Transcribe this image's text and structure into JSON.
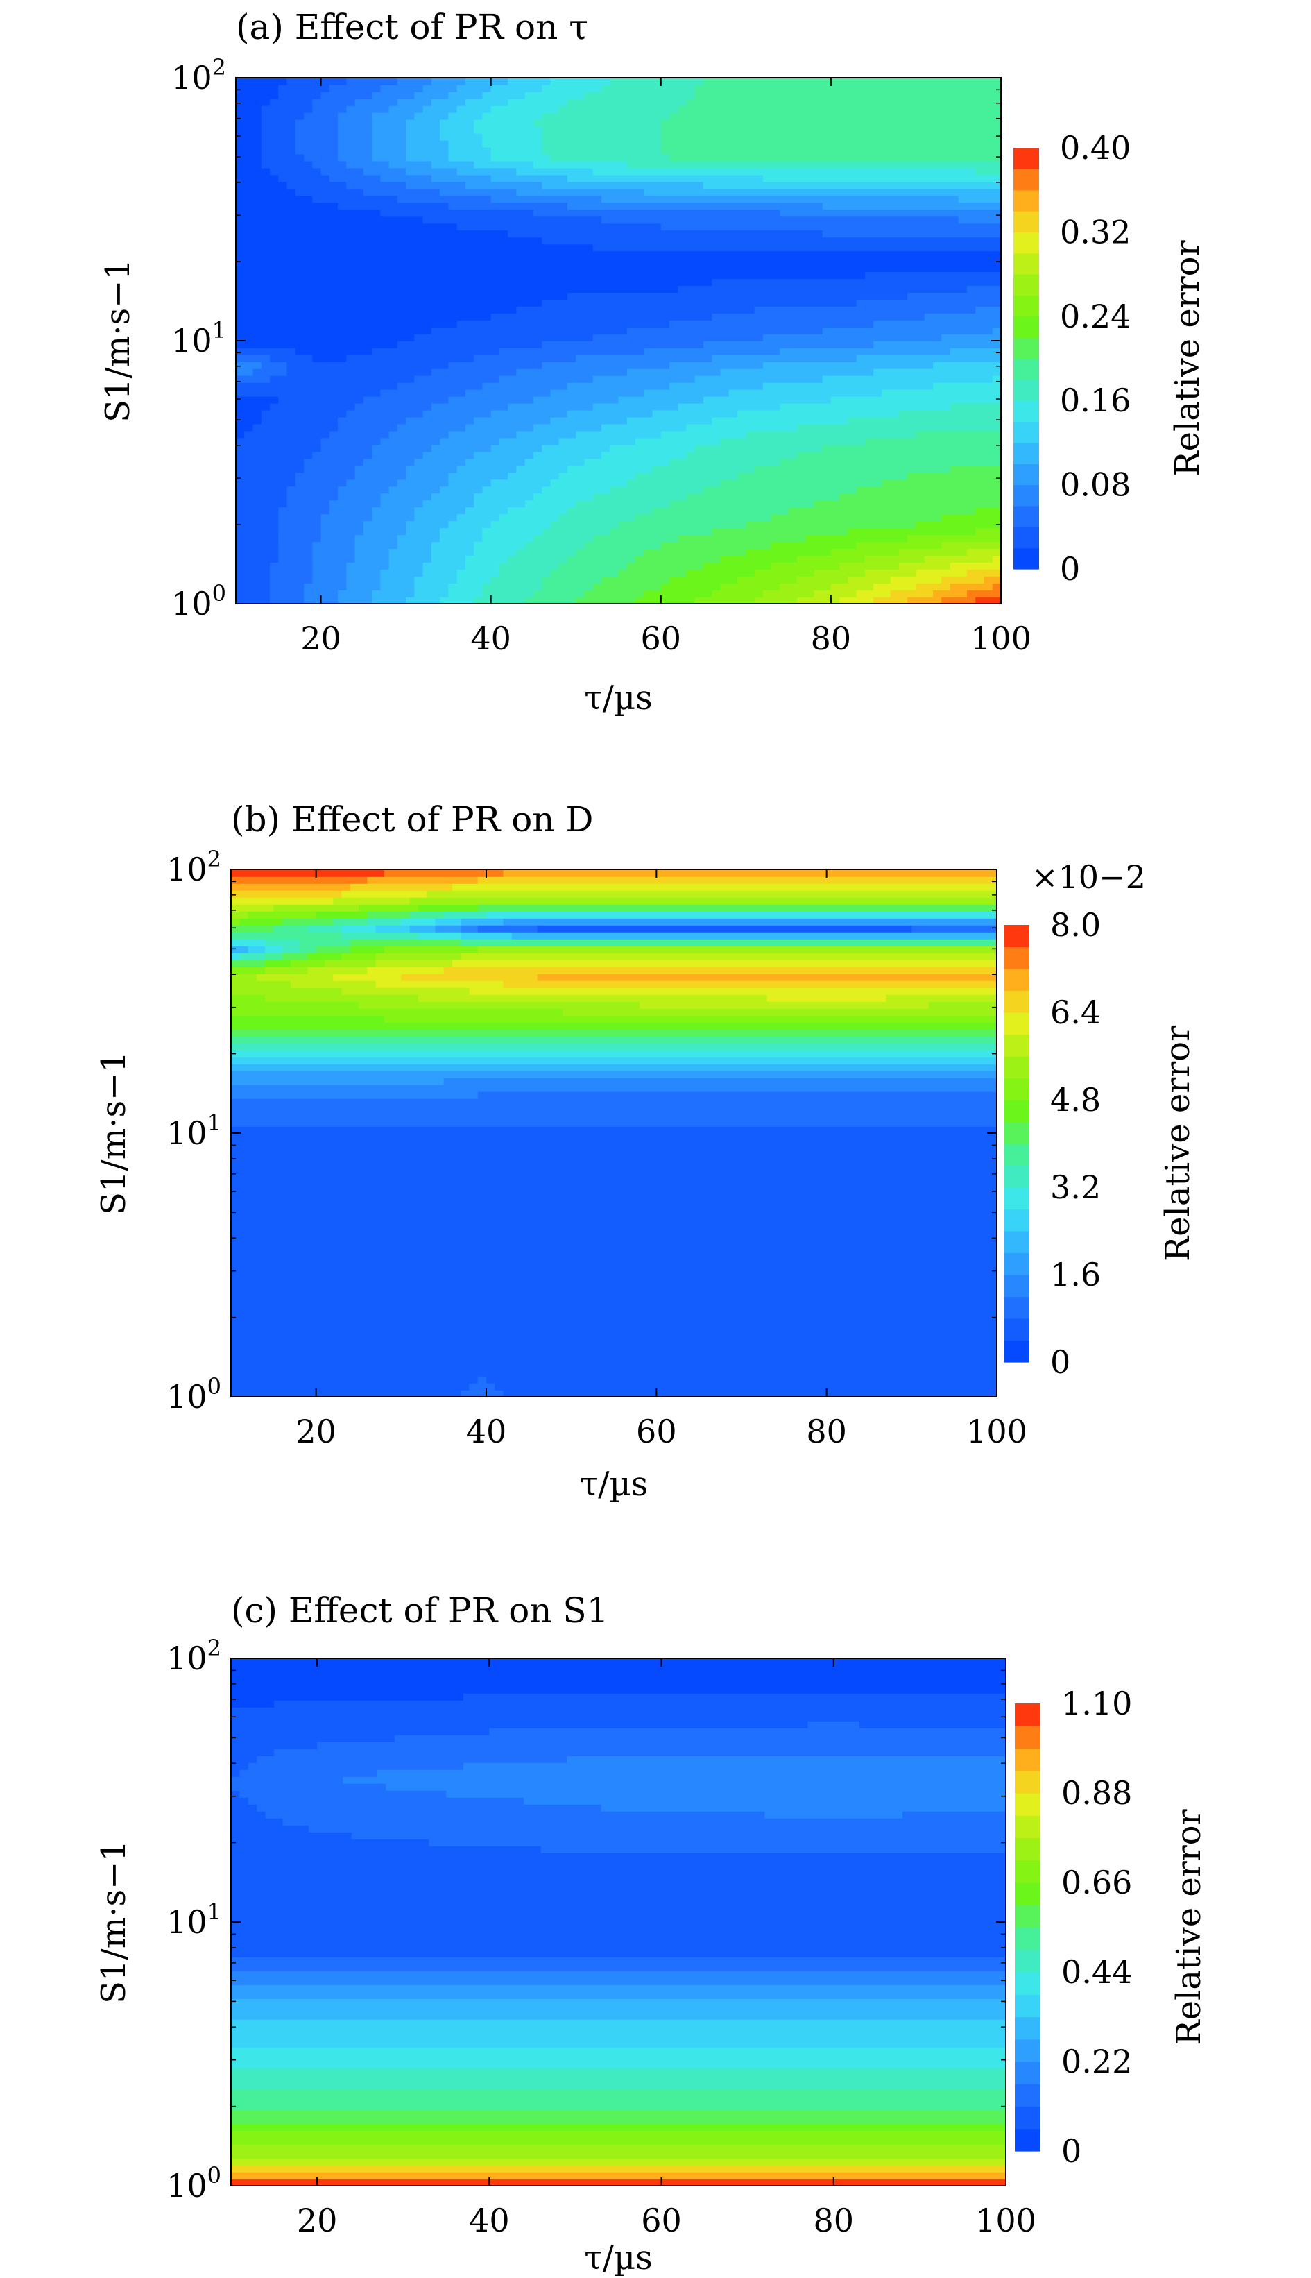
{
  "chart_data": [
    {
      "type": "heatmap",
      "panel": "a",
      "title": "(a) Effect of PR on τ",
      "x_label": "τ/µs",
      "y_label": "S1/m·s−1",
      "x_ticks": [
        "20",
        "40",
        "60",
        "80",
        "100"
      ],
      "y_ticks": [
        "10⁰",
        "10¹",
        "10²"
      ],
      "xlim": [
        10,
        100
      ],
      "ylim": [
        1,
        100
      ],
      "y_scale": "log",
      "colorbar_label": "Relative error",
      "colorbar_ticks": [
        "0",
        "0.08",
        "0.16",
        "0.24",
        "0.32",
        "0.40"
      ],
      "colorbar_range": [
        0,
        0.4
      ],
      "colorbar_multiplier": "",
      "x": [
        10,
        20,
        30,
        40,
        50,
        60,
        70,
        80,
        90,
        100
      ],
      "y": [
        1,
        2,
        4,
        6,
        8,
        10,
        15,
        20,
        30,
        50,
        70,
        100
      ],
      "z": [
        [
          0.02,
          0.07,
          0.12,
          0.17,
          0.2,
          0.23,
          0.26,
          0.3,
          0.35,
          0.4
        ],
        [
          0.02,
          0.06,
          0.1,
          0.14,
          0.17,
          0.19,
          0.2,
          0.21,
          0.22,
          0.23
        ],
        [
          0.02,
          0.04,
          0.07,
          0.1,
          0.13,
          0.15,
          0.17,
          0.18,
          0.19,
          0.19
        ],
        [
          0.01,
          0.03,
          0.05,
          0.07,
          0.09,
          0.11,
          0.13,
          0.14,
          0.15,
          0.16
        ],
        [
          0.08,
          0.02,
          0.03,
          0.05,
          0.07,
          0.08,
          0.1,
          0.11,
          0.12,
          0.13
        ],
        [
          0.0,
          0.01,
          0.02,
          0.03,
          0.04,
          0.05,
          0.06,
          0.07,
          0.08,
          0.09
        ],
        [
          0.0,
          0.0,
          0.01,
          0.01,
          0.02,
          0.02,
          0.03,
          0.03,
          0.04,
          0.05
        ],
        [
          0.0,
          0.0,
          0.0,
          0.0,
          0.01,
          0.01,
          0.01,
          0.01,
          0.01,
          0.01
        ],
        [
          0.0,
          0.01,
          0.02,
          0.03,
          0.04,
          0.05,
          0.05,
          0.06,
          0.06,
          0.07
        ],
        [
          0.01,
          0.05,
          0.1,
          0.14,
          0.17,
          0.18,
          0.19,
          0.19,
          0.19,
          0.19
        ],
        [
          0.01,
          0.05,
          0.1,
          0.15,
          0.17,
          0.18,
          0.19,
          0.19,
          0.19,
          0.19
        ],
        [
          0.0,
          0.03,
          0.06,
          0.11,
          0.15,
          0.17,
          0.19,
          0.19,
          0.19,
          0.19
        ]
      ]
    },
    {
      "type": "heatmap",
      "panel": "b",
      "title": "(b) Effect of PR on D",
      "x_label": "τ/µs",
      "y_label": "S1/m·s−1",
      "x_ticks": [
        "20",
        "40",
        "60",
        "80",
        "100"
      ],
      "y_ticks": [
        "10⁰",
        "10¹",
        "10²"
      ],
      "xlim": [
        10,
        100
      ],
      "ylim": [
        1,
        100
      ],
      "y_scale": "log",
      "colorbar_label": "Relative error",
      "colorbar_ticks": [
        "0",
        "1.6",
        "3.2",
        "4.8",
        "6.4",
        "8.0"
      ],
      "colorbar_range": [
        0,
        8.0
      ],
      "colorbar_multiplier": "×10−2",
      "x": [
        10,
        20,
        30,
        40,
        50,
        60,
        70,
        80,
        90,
        100
      ],
      "y": [
        1,
        2,
        5,
        10,
        15,
        20,
        25,
        30,
        40,
        50,
        60,
        75,
        100
      ],
      "z": [
        [
          0.4,
          0.4,
          0.6,
          0.9,
          0.5,
          0.8,
          0.6,
          0.6,
          0.6,
          0.8
        ],
        [
          0.5,
          0.5,
          0.5,
          0.5,
          0.5,
          0.5,
          0.5,
          0.5,
          0.5,
          0.5
        ],
        [
          0.5,
          0.5,
          0.5,
          0.5,
          0.5,
          0.5,
          0.5,
          0.5,
          0.5,
          0.5
        ],
        [
          0.7,
          0.7,
          0.7,
          0.7,
          0.7,
          0.7,
          0.7,
          0.7,
          0.7,
          0.7
        ],
        [
          1.4,
          1.4,
          1.4,
          1.3,
          1.3,
          1.3,
          1.3,
          1.3,
          1.3,
          1.3
        ],
        [
          2.8,
          2.8,
          2.8,
          2.8,
          2.8,
          2.8,
          2.8,
          2.8,
          2.8,
          2.8
        ],
        [
          4.5,
          4.5,
          4.5,
          4.5,
          4.5,
          4.5,
          4.5,
          4.6,
          4.5,
          4.5
        ],
        [
          5.0,
          5.0,
          5.2,
          5.3,
          5.4,
          5.5,
          5.5,
          5.8,
          5.5,
          5.4
        ],
        [
          5.5,
          6.0,
          6.5,
          6.8,
          7.0,
          7.1,
          7.0,
          7.0,
          7.0,
          7.0
        ],
        [
          2.0,
          4.0,
          5.0,
          5.2,
          5.2,
          5.2,
          5.2,
          5.2,
          5.2,
          5.2
        ],
        [
          4.5,
          3.5,
          2.5,
          1.0,
          0.5,
          0.5,
          0.5,
          0.6,
          0.7,
          0.8
        ],
        [
          6.0,
          6.0,
          5.5,
          5.2,
          5.2,
          5.2,
          5.2,
          5.2,
          5.2,
          5.2
        ],
        [
          8.0,
          8.0,
          7.8,
          7.5,
          7.2,
          7.0,
          7.0,
          7.0,
          7.0,
          7.0
        ]
      ]
    },
    {
      "type": "heatmap",
      "panel": "c",
      "title": "(c) Effect of PR on S1",
      "x_label": "τ/µs",
      "y_label": "S1/m·s−1",
      "x_ticks": [
        "20",
        "40",
        "60",
        "80",
        "100"
      ],
      "y_ticks": [
        "10⁰",
        "10¹",
        "10²"
      ],
      "xlim": [
        10,
        100
      ],
      "ylim": [
        1,
        100
      ],
      "y_scale": "log",
      "colorbar_label": "Relative error",
      "colorbar_ticks": [
        "0",
        "0.22",
        "0.44",
        "0.66",
        "0.88",
        "1.10"
      ],
      "colorbar_range": [
        0,
        1.1
      ],
      "colorbar_multiplier": "",
      "x": [
        10,
        20,
        30,
        40,
        50,
        60,
        70,
        80,
        90,
        100
      ],
      "y": [
        1,
        1.3,
        2,
        3,
        5,
        7,
        10,
        15,
        25,
        35,
        50,
        70,
        100
      ],
      "z": [
        [
          1.1,
          1.1,
          1.1,
          1.1,
          1.1,
          1.1,
          1.1,
          1.1,
          1.1,
          1.1
        ],
        [
          0.75,
          0.75,
          0.75,
          0.75,
          0.75,
          0.75,
          0.75,
          0.75,
          0.75,
          0.75
        ],
        [
          0.55,
          0.55,
          0.55,
          0.55,
          0.55,
          0.55,
          0.55,
          0.55,
          0.55,
          0.55
        ],
        [
          0.42,
          0.42,
          0.42,
          0.42,
          0.42,
          0.42,
          0.42,
          0.42,
          0.42,
          0.42
        ],
        [
          0.28,
          0.28,
          0.28,
          0.28,
          0.28,
          0.28,
          0.28,
          0.28,
          0.28,
          0.28
        ],
        [
          0.12,
          0.12,
          0.12,
          0.12,
          0.12,
          0.12,
          0.12,
          0.12,
          0.12,
          0.12
        ],
        [
          0.07,
          0.07,
          0.07,
          0.07,
          0.07,
          0.07,
          0.07,
          0.07,
          0.07,
          0.07
        ],
        [
          0.08,
          0.08,
          0.08,
          0.08,
          0.08,
          0.08,
          0.08,
          0.08,
          0.08,
          0.08
        ],
        [
          0.1,
          0.12,
          0.13,
          0.14,
          0.15,
          0.16,
          0.16,
          0.17,
          0.16,
          0.16
        ],
        [
          0.11,
          0.16,
          0.18,
          0.19,
          0.2,
          0.2,
          0.2,
          0.21,
          0.2,
          0.2
        ],
        [
          0.09,
          0.1,
          0.11,
          0.12,
          0.13,
          0.13,
          0.13,
          0.14,
          0.13,
          0.13
        ],
        [
          0.05,
          0.05,
          0.05,
          0.06,
          0.06,
          0.06,
          0.06,
          0.06,
          0.06,
          0.06
        ],
        [
          0.03,
          0.03,
          0.03,
          0.03,
          0.03,
          0.03,
          0.03,
          0.03,
          0.03,
          0.03
        ]
      ]
    }
  ]
}
